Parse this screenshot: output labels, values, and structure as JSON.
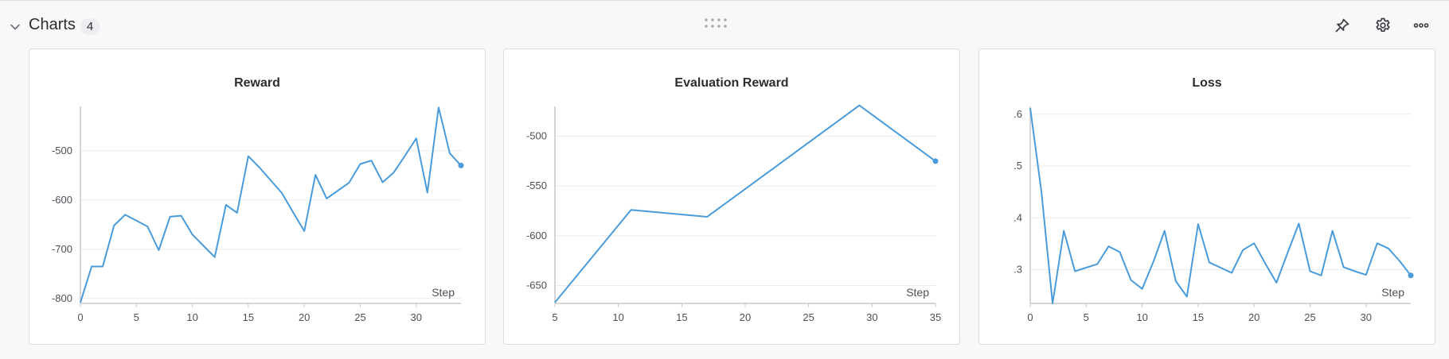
{
  "section": {
    "title": "Charts",
    "count": "4"
  },
  "colors": {
    "series": "#4a9bdb",
    "grid": "#ececee",
    "axis": "#c8c9cd"
  },
  "icons": {
    "collapse": "chevron-down-icon",
    "drag": "drag-handle-icon",
    "pin": "pin-icon",
    "settings": "gear-icon",
    "more": "more-horizontal-icon"
  },
  "chart_data": [
    {
      "type": "line",
      "title": "Reward",
      "xlabel": "Step",
      "ylabel": "",
      "xlim": [
        0,
        34
      ],
      "ylim": [
        -810,
        -410
      ],
      "xticks": [
        0,
        5,
        10,
        15,
        20,
        25,
        30
      ],
      "yticks": [
        -800,
        -700,
        -600,
        -500
      ],
      "grid": true,
      "series": [
        {
          "x": [
            0,
            1,
            2,
            3,
            4,
            5,
            6,
            7,
            8,
            9,
            10,
            11,
            12,
            13,
            14,
            15,
            16,
            17,
            18,
            19,
            20,
            21,
            22,
            23,
            24,
            25,
            26,
            27,
            28,
            29,
            30,
            31,
            32,
            33,
            34
          ],
          "y": [
            -808,
            -735,
            -735,
            -652,
            -630,
            -642,
            -654,
            -702,
            -634,
            -632,
            -670,
            -693,
            -716,
            -610,
            -626,
            -511,
            -534,
            -560,
            -586,
            -625,
            -663,
            -549,
            -597,
            -581,
            -565,
            -527,
            -520,
            -564,
            -544,
            -510,
            -475,
            -585,
            -412,
            -505,
            -530
          ]
        }
      ]
    },
    {
      "type": "line",
      "title": "Evaluation Reward",
      "xlabel": "Step",
      "ylabel": "",
      "xlim": [
        5,
        35
      ],
      "ylim": [
        -668,
        -470
      ],
      "xticks": [
        5,
        10,
        15,
        20,
        25,
        30,
        35
      ],
      "yticks": [
        -650,
        -600,
        -550,
        -500
      ],
      "grid": true,
      "series": [
        {
          "x": [
            5,
            11,
            17,
            29,
            35
          ],
          "y": [
            -667,
            -574,
            -581,
            -469,
            -525
          ]
        }
      ]
    },
    {
      "type": "line",
      "title": "Loss",
      "xlabel": "Step",
      "ylabel": "",
      "xlim": [
        0,
        34
      ],
      "ylim": [
        0.235,
        0.615
      ],
      "xticks": [
        0,
        5,
        10,
        15,
        20,
        25,
        30
      ],
      "yticks": [
        0.3,
        0.4,
        0.5,
        0.6
      ],
      "ytick_labels": [
        ".3",
        ".4",
        ".5",
        ".6"
      ],
      "grid": true,
      "series": [
        {
          "x": [
            0,
            1,
            2,
            3,
            4,
            5,
            6,
            7,
            8,
            9,
            10,
            11,
            12,
            13,
            14,
            15,
            16,
            17,
            18,
            19,
            20,
            21,
            22,
            23,
            24,
            25,
            26,
            27,
            28,
            29,
            30,
            31,
            32,
            33,
            34
          ],
          "y": [
            0.612,
            0.45,
            0.235,
            0.375,
            0.297,
            0.304,
            0.311,
            0.345,
            0.334,
            0.28,
            0.263,
            0.315,
            0.375,
            0.278,
            0.248,
            0.388,
            0.314,
            0.304,
            0.294,
            0.338,
            0.351,
            0.312,
            0.275,
            0.333,
            0.389,
            0.297,
            0.289,
            0.375,
            0.305,
            0.297,
            0.29,
            0.351,
            0.341,
            0.317,
            0.289
          ]
        }
      ]
    }
  ]
}
